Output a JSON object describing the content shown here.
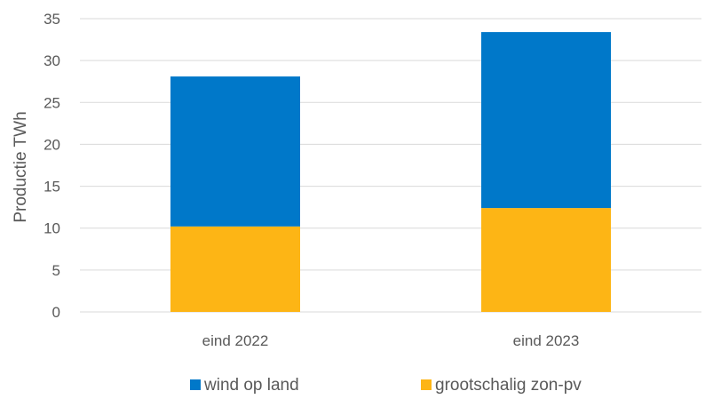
{
  "chart_data": {
    "type": "bar",
    "stacked": true,
    "categories": [
      "eind 2022",
      "eind 2023"
    ],
    "series": [
      {
        "name": "grootschalig zon-pv",
        "values": [
          10.2,
          12.4
        ],
        "color": "#FDB515"
      },
      {
        "name": "wind op land",
        "values": [
          17.9,
          21.0
        ],
        "color": "#0078C9"
      }
    ],
    "legend_order": [
      "wind op land",
      "grootschalig zon-pv"
    ],
    "ylabel": "Productie TWh",
    "xlabel": "",
    "ylim": [
      0,
      35
    ],
    "yticks": [
      0,
      5,
      10,
      15,
      20,
      25,
      30,
      35
    ],
    "grid": true,
    "legend_position": "bottom"
  }
}
